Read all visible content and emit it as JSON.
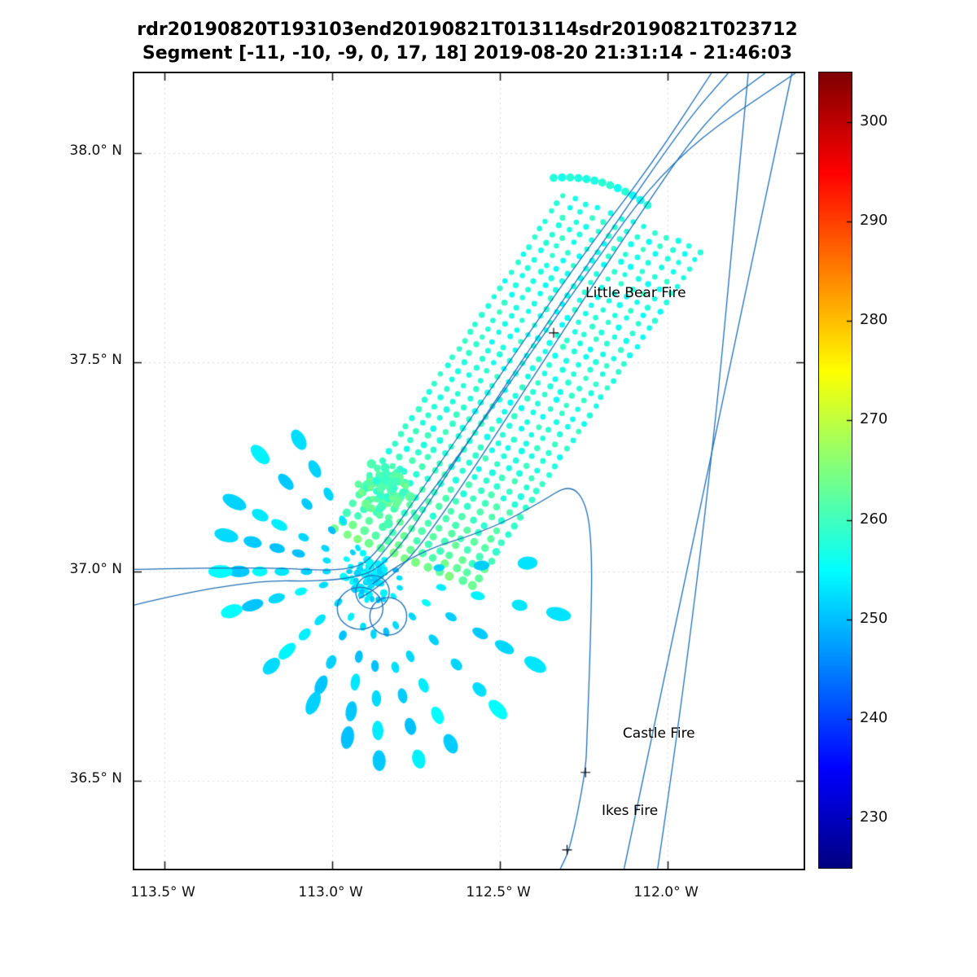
{
  "chart_data": {
    "type": "scatter",
    "title_line1": "rdr20190820T193103end20190821T013114sdr20190821T023712",
    "title_line2": "Segment [-11, -10, -9, 0, 17, 18] 2019-08-20 21:31:14 - 21:46:03",
    "axes": {
      "lon_range": [
        -113.59,
        -111.595
      ],
      "lat_range": [
        36.29,
        38.19
      ],
      "x_ticks": {
        "values": [
          -113.5,
          -113.0,
          -112.5,
          -112.0
        ],
        "labels": [
          "113.5° W",
          "113.0° W",
          "112.5° W",
          "112.0° W"
        ]
      },
      "y_ticks": {
        "values": [
          38.0,
          37.5,
          37.0,
          36.5
        ],
        "labels": [
          "38.0° N",
          "37.5° N",
          "37.0° N",
          "36.5° N"
        ]
      },
      "grid": "dotted"
    },
    "colorbar": {
      "colormap": "jet",
      "min": 225,
      "max": 305,
      "tick_values": [
        230,
        240,
        250,
        260,
        270,
        280,
        290,
        300
      ],
      "tick_labels": [
        "230",
        "240",
        "250",
        "260",
        "270",
        "280",
        "290",
        "300"
      ]
    },
    "fires": [
      {
        "name": "Little Bear Fire",
        "label": [
          -112.245,
          37.665
        ],
        "marker": [
          -112.34,
          37.57
        ]
      },
      {
        "name": "Castle Fire",
        "label": [
          -112.134,
          36.612
        ],
        "marker": [
          -112.245,
          36.52
        ]
      },
      {
        "name": "Ikes Fire",
        "label": [
          -112.197,
          36.428
        ],
        "marker": [
          -112.3,
          36.335
        ]
      }
    ],
    "swath": {
      "origin": [
        -112.99,
        37.1
      ],
      "along": [
        0.68,
        0.8
      ],
      "across": [
        0.41,
        -0.135
      ],
      "n_along": 40,
      "n_across": 13,
      "base_value": 257.5,
      "head_boost": 6.0,
      "value_noise": 4.0
    },
    "blob_cluster": {
      "center": [
        -112.845,
        37.19
      ],
      "sigma": [
        0.075,
        0.06
      ],
      "count": 70,
      "value_base": 258,
      "value_spread": 6
    },
    "top_arc": {
      "p0": [
        -112.34,
        37.94
      ],
      "ctrl": [
        -112.19,
        37.95
      ],
      "p1": [
        -112.06,
        37.875
      ],
      "n": 13,
      "value": 257
    },
    "starburst": {
      "center": [
        -112.885,
        37.0
      ],
      "value_base": 250,
      "value_spread": 5,
      "center_dots": 45,
      "rays": [
        {
          "end": [
            -113.34,
            37.0
          ],
          "n": 7
        },
        {
          "end": [
            -113.31,
            37.085
          ],
          "n": 6
        },
        {
          "end": [
            -113.29,
            37.165
          ],
          "n": 6
        },
        {
          "end": [
            -113.21,
            37.275
          ],
          "n": 5
        },
        {
          "end": [
            -113.1,
            37.315
          ],
          "n": 5
        },
        {
          "end": [
            -113.3,
            36.905
          ],
          "n": 6
        },
        {
          "end": [
            -113.18,
            36.775
          ],
          "n": 6
        },
        {
          "end": [
            -113.06,
            36.68
          ],
          "n": 6
        },
        {
          "end": [
            -112.955,
            36.6
          ],
          "n": 6
        },
        {
          "end": [
            -112.86,
            36.545
          ],
          "n": 6
        },
        {
          "end": [
            -112.74,
            36.545
          ],
          "n": 6
        },
        {
          "end": [
            -112.645,
            36.585
          ],
          "n": 6
        },
        {
          "end": [
            -112.5,
            36.665
          ],
          "n": 6
        },
        {
          "end": [
            -112.4,
            36.78
          ],
          "n": 6
        },
        {
          "end": [
            -112.335,
            36.9
          ],
          "n": 5
        },
        {
          "end": [
            -112.42,
            37.02
          ],
          "n": 4
        }
      ]
    },
    "flight_tracks": {
      "color": "#1f6fb5",
      "lines": [
        [
          [
            -113.59,
            37.005
          ],
          [
            -113.22,
            37.012
          ],
          [
            -112.94,
            36.998
          ],
          [
            -112.86,
            37.05
          ],
          [
            -112.72,
            37.21
          ],
          [
            -112.49,
            37.48
          ],
          [
            -112.25,
            37.76
          ],
          [
            -112.05,
            37.97
          ],
          [
            -111.87,
            38.19
          ]
        ],
        [
          [
            -113.59,
            36.92
          ],
          [
            -113.28,
            36.98
          ],
          [
            -112.97,
            36.975
          ],
          [
            -112.83,
            37.015
          ],
          [
            -112.66,
            37.23
          ],
          [
            -112.43,
            37.51
          ],
          [
            -112.19,
            37.79
          ],
          [
            -111.95,
            38.07
          ],
          [
            -111.82,
            38.19
          ]
        ],
        [
          [
            -112.92,
            36.935
          ],
          [
            -112.81,
            36.985
          ],
          [
            -112.64,
            37.17
          ],
          [
            -112.38,
            37.49
          ],
          [
            -112.12,
            37.81
          ],
          [
            -111.88,
            38.09
          ],
          [
            -111.71,
            38.19
          ]
        ],
        [
          [
            -112.89,
            37.005
          ],
          [
            -112.72,
            37.17
          ],
          [
            -112.55,
            37.36
          ],
          [
            -112.27,
            37.68
          ],
          [
            -111.99,
            37.99
          ],
          [
            -111.62,
            38.19
          ]
        ],
        [
          [
            -112.88,
            36.97
          ],
          [
            -112.77,
            37.04
          ],
          [
            -112.53,
            37.1
          ],
          [
            -112.38,
            37.165
          ],
          [
            -112.29,
            37.21
          ],
          [
            -112.24,
            37.16
          ],
          [
            -112.225,
            37.04
          ],
          [
            -112.23,
            36.84
          ],
          [
            -112.24,
            36.61
          ],
          [
            -112.245,
            36.52
          ],
          [
            -112.29,
            36.34
          ],
          [
            -112.32,
            36.29
          ]
        ],
        [
          [
            -112.13,
            36.29
          ],
          [
            -111.87,
            37.28
          ],
          [
            -111.63,
            38.19
          ]
        ],
        [
          [
            -112.03,
            36.29
          ],
          [
            -111.9,
            36.99
          ],
          [
            -111.76,
            38.19
          ]
        ]
      ],
      "loops": [
        {
          "c": [
            -112.88,
            36.951
          ],
          "r": [
            0.05,
            0.04
          ]
        },
        {
          "c": [
            -112.833,
            36.893
          ],
          "r": [
            0.055,
            0.045
          ]
        },
        {
          "c": [
            -112.917,
            36.912
          ],
          "r": [
            0.068,
            0.05
          ]
        }
      ]
    }
  }
}
